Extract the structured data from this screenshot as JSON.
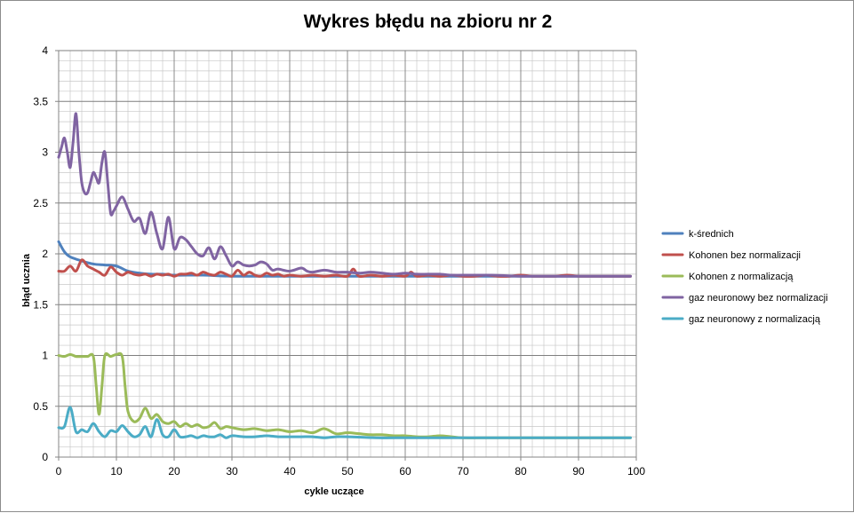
{
  "chart_data": {
    "type": "line",
    "title": "Wykres błędu na zbioru nr 2",
    "xlabel": "cykle uczące",
    "ylabel": "błąd ucznia",
    "xlim": [
      0,
      100
    ],
    "ylim": [
      0,
      4
    ],
    "xticks": [
      0,
      10,
      20,
      30,
      40,
      50,
      60,
      70,
      80,
      90,
      100
    ],
    "yticks": [
      0,
      0.5,
      1,
      1.5,
      2,
      2.5,
      3,
      3.5,
      4
    ],
    "grid": true,
    "legend": "right",
    "series": [
      {
        "name": "k-średnich",
        "color": "#4f81bd",
        "x": [
          0,
          1,
          2,
          4,
          6,
          8,
          10,
          12,
          14,
          16,
          18,
          20,
          25,
          30,
          40,
          50,
          60,
          70,
          80,
          90,
          99
        ],
        "y": [
          2.12,
          2.02,
          1.97,
          1.93,
          1.9,
          1.89,
          1.88,
          1.83,
          1.81,
          1.8,
          1.8,
          1.79,
          1.79,
          1.78,
          1.78,
          1.78,
          1.78,
          1.78,
          1.78,
          1.78,
          1.78
        ]
      },
      {
        "name": "Kohonen bez normalizacji",
        "color": "#c0504d",
        "x": [
          0,
          1,
          2,
          3,
          4,
          5,
          6,
          7,
          8,
          9,
          10,
          11,
          12,
          13,
          14,
          15,
          16,
          17,
          18,
          19,
          20,
          21,
          22,
          23,
          24,
          25,
          26,
          27,
          28,
          29,
          30,
          31,
          32,
          33,
          34,
          35,
          36,
          37,
          38,
          39,
          40,
          42,
          44,
          46,
          48,
          50,
          51,
          52,
          54,
          56,
          58,
          60,
          61,
          62,
          64,
          66,
          68,
          70,
          72,
          74,
          76,
          78,
          80,
          82,
          84,
          86,
          88,
          90,
          92,
          94,
          96,
          98,
          99
        ],
        "y": [
          1.83,
          1.83,
          1.88,
          1.83,
          1.94,
          1.88,
          1.85,
          1.82,
          1.79,
          1.87,
          1.82,
          1.79,
          1.82,
          1.8,
          1.79,
          1.8,
          1.78,
          1.8,
          1.79,
          1.8,
          1.78,
          1.8,
          1.8,
          1.81,
          1.79,
          1.82,
          1.8,
          1.79,
          1.82,
          1.8,
          1.78,
          1.84,
          1.79,
          1.82,
          1.79,
          1.78,
          1.81,
          1.79,
          1.8,
          1.78,
          1.79,
          1.78,
          1.79,
          1.78,
          1.79,
          1.78,
          1.85,
          1.78,
          1.79,
          1.78,
          1.79,
          1.78,
          1.82,
          1.78,
          1.79,
          1.78,
          1.79,
          1.78,
          1.78,
          1.79,
          1.78,
          1.78,
          1.79,
          1.78,
          1.78,
          1.78,
          1.79,
          1.78,
          1.78,
          1.78,
          1.78,
          1.78,
          1.78
        ]
      },
      {
        "name": "Kohonen z normalizacją",
        "color": "#9bbb59",
        "x": [
          0,
          1,
          2,
          3,
          4,
          5,
          6,
          6.5,
          7,
          7.5,
          8,
          9,
          10,
          11,
          11.5,
          12,
          13,
          14,
          15,
          16,
          17,
          18,
          19,
          20,
          21,
          22,
          23,
          24,
          25,
          26,
          27,
          28,
          29,
          30,
          32,
          34,
          36,
          38,
          40,
          42,
          44,
          46,
          48,
          50,
          52,
          54,
          56,
          58,
          60,
          62,
          64,
          66,
          68,
          70,
          75,
          80,
          85,
          90,
          95,
          99
        ],
        "y": [
          1.0,
          0.99,
          1.01,
          0.99,
          0.99,
          0.99,
          0.99,
          0.7,
          0.42,
          0.7,
          1.0,
          0.99,
          1.01,
          0.99,
          0.7,
          0.45,
          0.35,
          0.38,
          0.48,
          0.38,
          0.42,
          0.35,
          0.33,
          0.35,
          0.3,
          0.33,
          0.3,
          0.32,
          0.29,
          0.3,
          0.34,
          0.28,
          0.3,
          0.29,
          0.27,
          0.28,
          0.26,
          0.27,
          0.25,
          0.26,
          0.24,
          0.28,
          0.23,
          0.24,
          0.23,
          0.22,
          0.22,
          0.21,
          0.21,
          0.2,
          0.2,
          0.21,
          0.2,
          0.19,
          0.19,
          0.19,
          0.19,
          0.19,
          0.19,
          0.19
        ]
      },
      {
        "name": "gaz neuronowy bez normalizacji",
        "color": "#8064a2",
        "x": [
          0,
          0.5,
          1,
          1.5,
          2,
          2.5,
          3,
          3.5,
          4,
          4.5,
          5,
          5.5,
          6,
          6.5,
          7,
          7.5,
          8,
          8.5,
          9,
          9.5,
          10,
          11,
          12,
          13,
          14,
          15,
          16,
          17,
          18,
          19,
          20,
          21,
          22,
          23,
          24,
          25,
          26,
          27,
          28,
          29,
          30,
          31,
          32,
          33,
          34,
          35,
          36,
          37,
          38,
          40,
          42,
          43,
          44,
          46,
          48,
          50,
          52,
          54,
          56,
          58,
          60,
          62,
          64,
          66,
          68,
          70,
          75,
          80,
          85,
          90,
          95,
          99
        ],
        "y": [
          2.95,
          3.05,
          3.14,
          3.0,
          2.85,
          3.1,
          3.38,
          3.0,
          2.7,
          2.6,
          2.6,
          2.7,
          2.8,
          2.75,
          2.7,
          2.9,
          3.0,
          2.7,
          2.4,
          2.42,
          2.47,
          2.56,
          2.44,
          2.32,
          2.35,
          2.2,
          2.41,
          2.2,
          2.05,
          2.36,
          2.05,
          2.16,
          2.14,
          2.07,
          2.0,
          1.98,
          2.06,
          1.95,
          2.07,
          1.98,
          1.88,
          1.92,
          1.89,
          1.88,
          1.89,
          1.92,
          1.9,
          1.84,
          1.85,
          1.83,
          1.86,
          1.83,
          1.82,
          1.84,
          1.82,
          1.82,
          1.81,
          1.82,
          1.81,
          1.8,
          1.81,
          1.8,
          1.8,
          1.8,
          1.79,
          1.79,
          1.79,
          1.78,
          1.78,
          1.78,
          1.78,
          1.78
        ]
      },
      {
        "name": "gaz neuronowy z normalizacją",
        "color": "#4bacc6",
        "x": [
          0,
          1,
          2,
          3,
          4,
          5,
          6,
          7,
          8,
          9,
          10,
          11,
          12,
          13,
          14,
          15,
          16,
          17,
          18,
          19,
          20,
          21,
          22,
          23,
          24,
          25,
          26,
          27,
          28,
          29,
          30,
          32,
          34,
          36,
          38,
          40,
          42,
          44,
          46,
          48,
          50,
          55,
          60,
          65,
          70,
          75,
          80,
          85,
          90,
          95,
          99
        ],
        "y": [
          0.29,
          0.3,
          0.49,
          0.25,
          0.27,
          0.25,
          0.33,
          0.25,
          0.2,
          0.26,
          0.25,
          0.31,
          0.25,
          0.2,
          0.22,
          0.3,
          0.2,
          0.37,
          0.22,
          0.2,
          0.27,
          0.2,
          0.2,
          0.21,
          0.19,
          0.21,
          0.2,
          0.2,
          0.22,
          0.19,
          0.21,
          0.2,
          0.2,
          0.21,
          0.2,
          0.2,
          0.2,
          0.2,
          0.19,
          0.2,
          0.2,
          0.19,
          0.19,
          0.19,
          0.19,
          0.19,
          0.19,
          0.19,
          0.19,
          0.19,
          0.19
        ]
      }
    ]
  }
}
